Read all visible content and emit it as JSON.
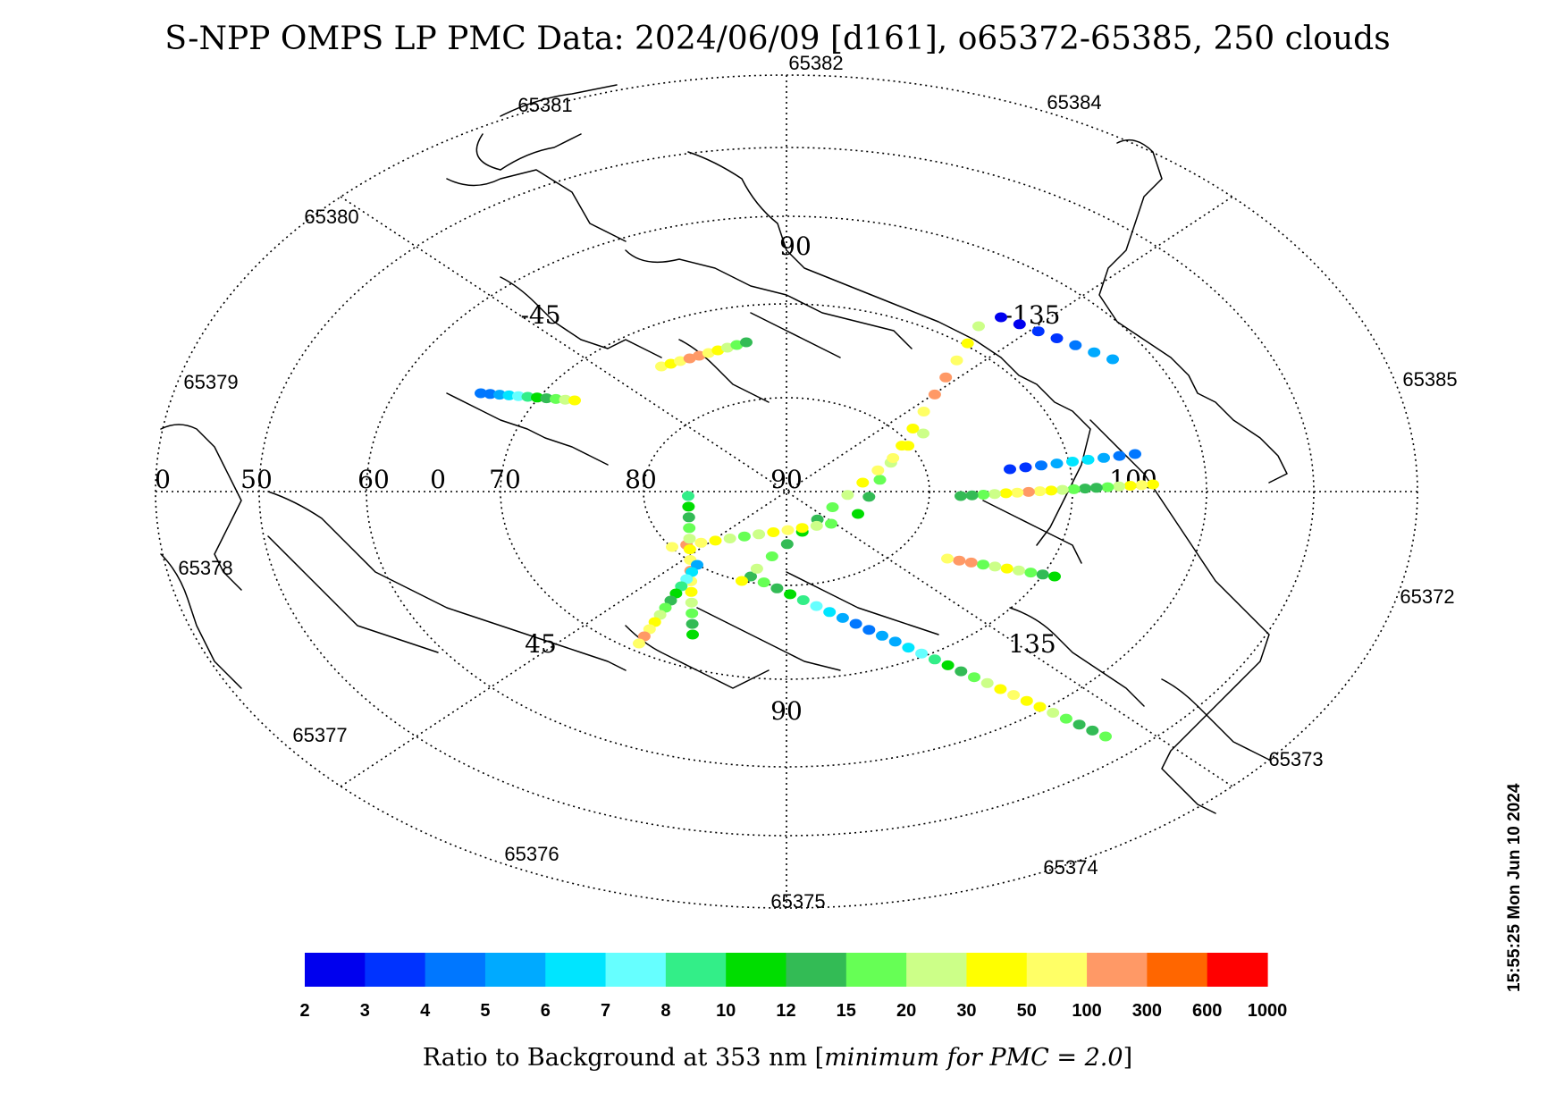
{
  "title": "S-NPP OMPS LP PMC Data: 2024/06/09 [d161], o65372-65385, 250 clouds",
  "timestamp": "15:55:25 Mon Jun 10 2024",
  "map": {
    "projection": "polar",
    "grid_labels": [
      "90",
      "-45",
      "-135",
      "0",
      "50",
      "60",
      "0",
      "70",
      "80",
      "90",
      "100",
      "45",
      "135",
      "90"
    ],
    "orbit_labels": [
      "65372",
      "65373",
      "65374",
      "65375",
      "65376",
      "65377",
      "65378",
      "65379",
      "65380",
      "65381",
      "65382",
      "65384",
      "65385"
    ]
  },
  "colorbar": {
    "levels": [
      "2",
      "3",
      "4",
      "5",
      "6",
      "7",
      "8",
      "10",
      "12",
      "15",
      "20",
      "30",
      "50",
      "100",
      "300",
      "600",
      "1000"
    ],
    "colors": [
      "#0000ee",
      "#0033ff",
      "#0077ff",
      "#00aaff",
      "#00e5ff",
      "#66ffff",
      "#33ee88",
      "#00dd00",
      "#33bb55",
      "#66ff55",
      "#ccff88",
      "#ffff00",
      "#ffff66",
      "#ff9966",
      "#ff6600",
      "#ff0000"
    ],
    "label_prefix": "Ratio to Background at 353 nm [",
    "label_italic": "minimum for PMC = 2.0",
    "label_suffix": "]"
  },
  "clouds": {
    "count": "250",
    "legend_color_class_meaning": "index into colorbar.colors",
    "tracks": [
      {
        "orbit": "65373",
        "color_classes": [
          9,
          8,
          8,
          9,
          10,
          11,
          11,
          12,
          11,
          10,
          9,
          8,
          7,
          6,
          5,
          4,
          3,
          3,
          2,
          2,
          3,
          4,
          5,
          6,
          7,
          8,
          9,
          8
        ]
      },
      {
        "orbit": "65374",
        "color_classes": [
          7,
          8,
          9,
          10,
          11,
          10,
          9,
          13,
          13,
          12
        ]
      },
      {
        "orbit": "65375",
        "color_classes": [
          11,
          12,
          11,
          10,
          9,
          8,
          8,
          9,
          10,
          11,
          12,
          13,
          12,
          11,
          10,
          9,
          8,
          8
        ]
      },
      {
        "orbit": "65376",
        "color_classes": [
          3,
          3,
          2,
          1,
          1,
          0,
          0
        ]
      },
      {
        "orbit": "65377",
        "color_classes": [
          10,
          11,
          12,
          13,
          13,
          12,
          11,
          11,
          10,
          9,
          8,
          7
        ]
      },
      {
        "orbit": "65378",
        "color_classes": [
          10,
          11,
          12,
          12,
          11,
          10,
          9,
          8,
          7,
          8,
          9,
          10,
          11
        ]
      },
      {
        "orbit": "65379",
        "color_classes": [
          2,
          2,
          3,
          4,
          4,
          3,
          2,
          1,
          1
        ]
      },
      {
        "orbit": "65380",
        "color_classes": [
          9,
          10,
          11,
          12,
          11,
          10,
          9,
          10,
          11,
          12,
          13,
          12
        ]
      },
      {
        "orbit": "65381",
        "color_classes": [
          7,
          8,
          9,
          10,
          11,
          12,
          13,
          12,
          11,
          10,
          9,
          8,
          7,
          6
        ]
      },
      {
        "orbit": "65382",
        "color_classes": [
          3,
          4,
          5,
          6,
          7,
          8,
          9,
          10,
          11,
          12,
          13,
          12
        ]
      },
      {
        "orbit": "65384",
        "color_classes": [
          12,
          11,
          12,
          13,
          13,
          12,
          11,
          10,
          9,
          8
        ]
      },
      {
        "orbit": "65385",
        "color_classes": [
          2,
          2,
          3,
          4,
          5,
          6,
          7,
          8,
          9,
          10,
          11
        ]
      }
    ]
  }
}
